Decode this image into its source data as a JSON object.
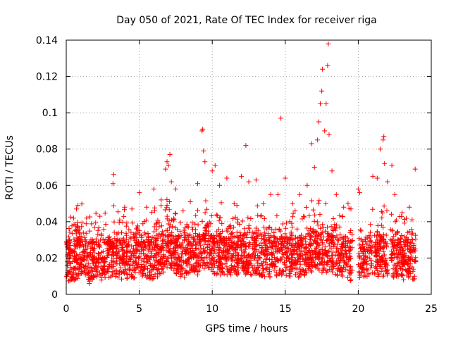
{
  "chart_data": {
    "type": "scatter",
    "title": "Day 050 of 2021, Rate Of TEC Index for receiver riga",
    "xlabel": "GPS time / hours",
    "ylabel": "ROTI / TECUs",
    "xlim": [
      0,
      25
    ],
    "ylim": [
      0,
      0.14
    ],
    "xticks": [
      "0",
      "5",
      "10",
      "15",
      "20",
      "25"
    ],
    "yticks": [
      "0",
      "0.02",
      "0.04",
      "0.06",
      "0.08",
      "0.1",
      "0.12",
      "0.14"
    ],
    "grid": true,
    "marker": "+",
    "color": "#ff0000",
    "series": [
      {
        "name": "ROTI",
        "baseline_profile": [
          [
            0.0,
            0.018
          ],
          [
            0.5,
            0.016
          ],
          [
            1.0,
            0.022
          ],
          [
            1.5,
            0.016
          ],
          [
            2.0,
            0.018
          ],
          [
            3.0,
            0.02
          ],
          [
            4.0,
            0.019
          ],
          [
            5.0,
            0.02
          ],
          [
            6.0,
            0.019
          ],
          [
            7.0,
            0.024
          ],
          [
            8.0,
            0.02
          ],
          [
            9.0,
            0.021
          ],
          [
            9.5,
            0.025
          ],
          [
            10.0,
            0.022
          ],
          [
            11.0,
            0.021
          ],
          [
            12.0,
            0.022
          ],
          [
            13.0,
            0.021
          ],
          [
            14.0,
            0.02
          ],
          [
            15.0,
            0.021
          ],
          [
            16.0,
            0.02
          ],
          [
            17.0,
            0.024
          ],
          [
            18.0,
            0.022
          ],
          [
            19.0,
            0.02
          ],
          [
            19.6,
            0.018
          ],
          [
            20.0,
            0.02
          ],
          [
            21.0,
            0.021
          ],
          [
            22.0,
            0.02
          ],
          [
            23.0,
            0.019
          ],
          [
            24.0,
            0.018
          ]
        ],
        "data_gaps": [
          [
            19.6,
            20.0
          ],
          [
            21.0,
            21.1
          ],
          [
            22.0,
            22.2
          ]
        ],
        "outliers": [
          [
            0.5,
            0.042
          ],
          [
            0.7,
            0.047
          ],
          [
            0.8,
            0.049
          ],
          [
            2.3,
            0.043
          ],
          [
            3.2,
            0.061
          ],
          [
            3.25,
            0.066
          ],
          [
            4.0,
            0.048
          ],
          [
            4.5,
            0.047
          ],
          [
            5.0,
            0.056
          ],
          [
            5.5,
            0.048
          ],
          [
            6.0,
            0.058
          ],
          [
            6.5,
            0.052
          ],
          [
            6.8,
            0.069
          ],
          [
            6.9,
            0.073
          ],
          [
            7.0,
            0.071
          ],
          [
            7.1,
            0.077
          ],
          [
            7.2,
            0.062
          ],
          [
            7.5,
            0.058
          ],
          [
            8.0,
            0.046
          ],
          [
            8.5,
            0.051
          ],
          [
            9.0,
            0.061
          ],
          [
            9.3,
            0.09
          ],
          [
            9.35,
            0.091
          ],
          [
            9.4,
            0.079
          ],
          [
            9.5,
            0.073
          ],
          [
            10.0,
            0.068
          ],
          [
            10.2,
            0.071
          ],
          [
            10.5,
            0.06
          ],
          [
            11.0,
            0.064
          ],
          [
            11.5,
            0.05
          ],
          [
            12.0,
            0.065
          ],
          [
            12.3,
            0.082
          ],
          [
            12.5,
            0.062
          ],
          [
            13.0,
            0.063
          ],
          [
            13.5,
            0.05
          ],
          [
            14.0,
            0.055
          ],
          [
            14.5,
            0.055
          ],
          [
            14.7,
            0.097
          ],
          [
            15.0,
            0.064
          ],
          [
            15.5,
            0.05
          ],
          [
            16.0,
            0.055
          ],
          [
            16.5,
            0.06
          ],
          [
            16.8,
            0.083
          ],
          [
            17.0,
            0.07
          ],
          [
            17.2,
            0.085
          ],
          [
            17.3,
            0.095
          ],
          [
            17.4,
            0.105
          ],
          [
            17.5,
            0.112
          ],
          [
            17.55,
            0.124
          ],
          [
            17.7,
            0.09
          ],
          [
            17.8,
            0.105
          ],
          [
            17.9,
            0.126
          ],
          [
            17.95,
            0.138
          ],
          [
            18.0,
            0.088
          ],
          [
            18.2,
            0.068
          ],
          [
            18.5,
            0.055
          ],
          [
            19.0,
            0.048
          ],
          [
            19.3,
            0.05
          ],
          [
            19.5,
            0.047
          ],
          [
            20.0,
            0.058
          ],
          [
            20.1,
            0.056
          ],
          [
            21.0,
            0.065
          ],
          [
            21.3,
            0.064
          ],
          [
            21.5,
            0.08
          ],
          [
            21.7,
            0.085
          ],
          [
            21.75,
            0.087
          ],
          [
            21.8,
            0.072
          ],
          [
            22.0,
            0.062
          ],
          [
            22.3,
            0.071
          ],
          [
            22.5,
            0.055
          ],
          [
            23.0,
            0.045
          ],
          [
            23.5,
            0.048
          ],
          [
            23.9,
            0.069
          ]
        ]
      }
    ]
  }
}
